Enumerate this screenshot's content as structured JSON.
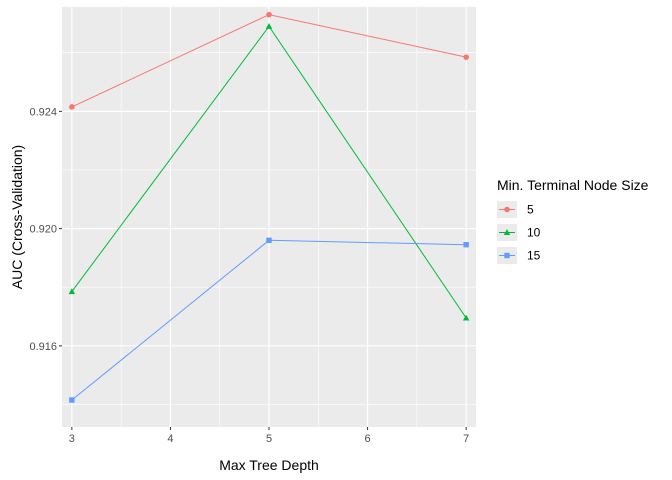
{
  "chart_data": {
    "type": "line",
    "xlabel": "Max Tree Depth",
    "ylabel": "AUC (Cross-Validation)",
    "x": [
      3,
      5,
      7
    ],
    "xlim": [
      2.9,
      7.1
    ],
    "ylim": [
      0.91323,
      0.92756
    ],
    "x_ticks": [
      3,
      4,
      5,
      6,
      7
    ],
    "y_ticks": [
      0.916,
      0.92,
      0.924
    ],
    "x_tick_labels": [
      "3",
      "4",
      "5",
      "6",
      "7"
    ],
    "y_tick_labels": [
      "0.916",
      "0.920",
      "0.924"
    ],
    "grid": true,
    "panel_background": "#ebebeb",
    "legend": {
      "title": "Min. Terminal Node Size",
      "placement": "right"
    },
    "series": [
      {
        "name": "5",
        "color": "#f8766d",
        "marker": "circle",
        "values": [
          0.92415,
          0.9273,
          0.92585
        ]
      },
      {
        "name": "10",
        "color": "#00ba38",
        "marker": "triangle",
        "values": [
          0.91785,
          0.9269,
          0.91695
        ]
      },
      {
        "name": "15",
        "color": "#619cff",
        "marker": "square",
        "values": [
          0.91415,
          0.9196,
          0.91945
        ]
      }
    ]
  }
}
